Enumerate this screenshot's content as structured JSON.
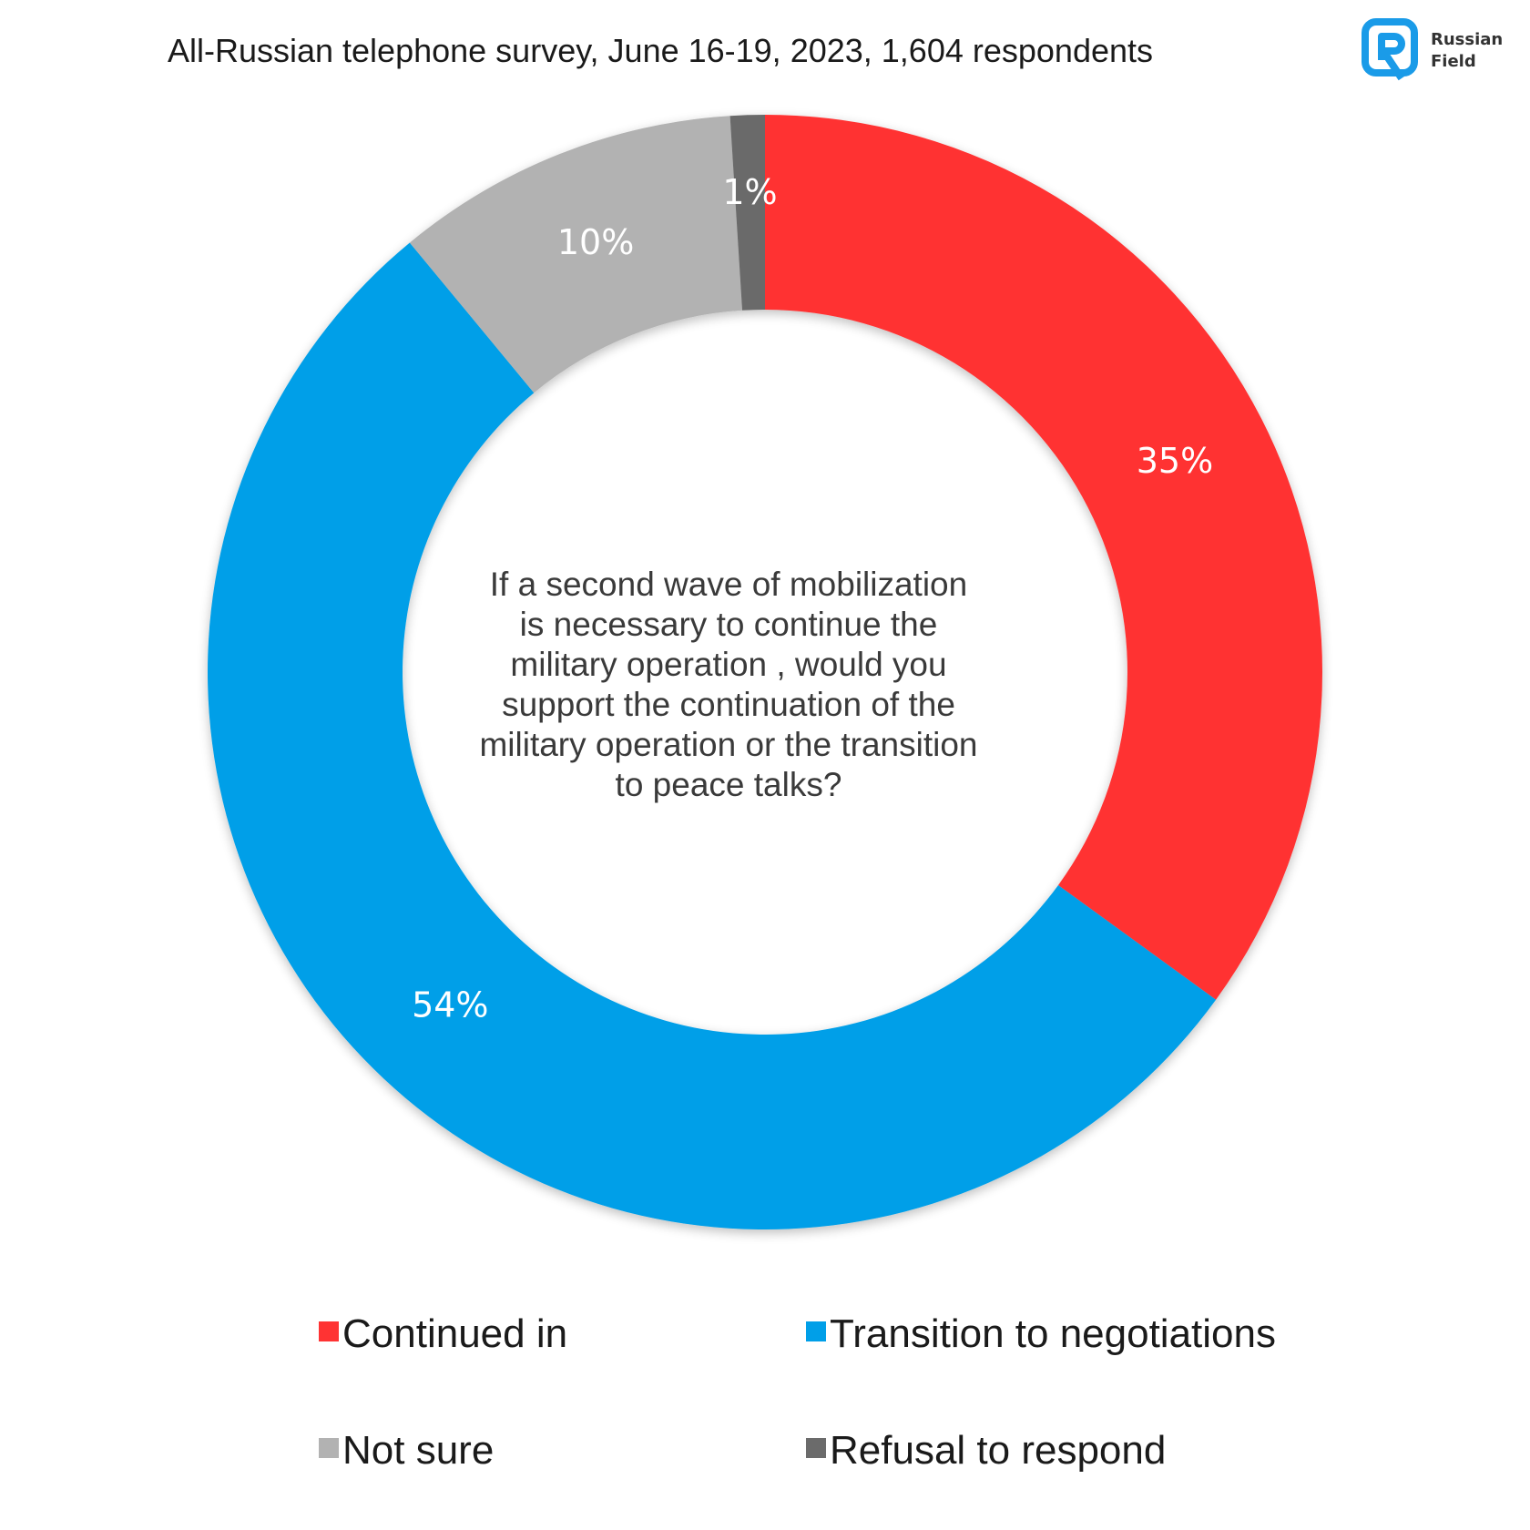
{
  "header": {
    "title": "All-Russian telephone survey, June 16-19, 2023, 1,604 respondents"
  },
  "logo": {
    "line1": "Russian",
    "line2": "Field",
    "color": "#1a9be8"
  },
  "chart_data": {
    "type": "pie",
    "donut": true,
    "center_text": "If a second wave of mobilization is necessary to continue the military operation , would you support the continuation of the military operation or the transition to peace talks?",
    "slices": [
      {
        "label": "Continued in",
        "value": 35,
        "display": "35%",
        "color": "#ff3333"
      },
      {
        "label": "Transition to negotiations",
        "value": 54,
        "display": "54%",
        "color": "#009fe8"
      },
      {
        "label": "Not sure",
        "value": 10,
        "display": "10%",
        "color": "#b2b2b2"
      },
      {
        "label": "Refusal to respond",
        "value": 1,
        "display": "1%",
        "color": "#6b6b6b"
      }
    ],
    "legend_position": "bottom"
  }
}
